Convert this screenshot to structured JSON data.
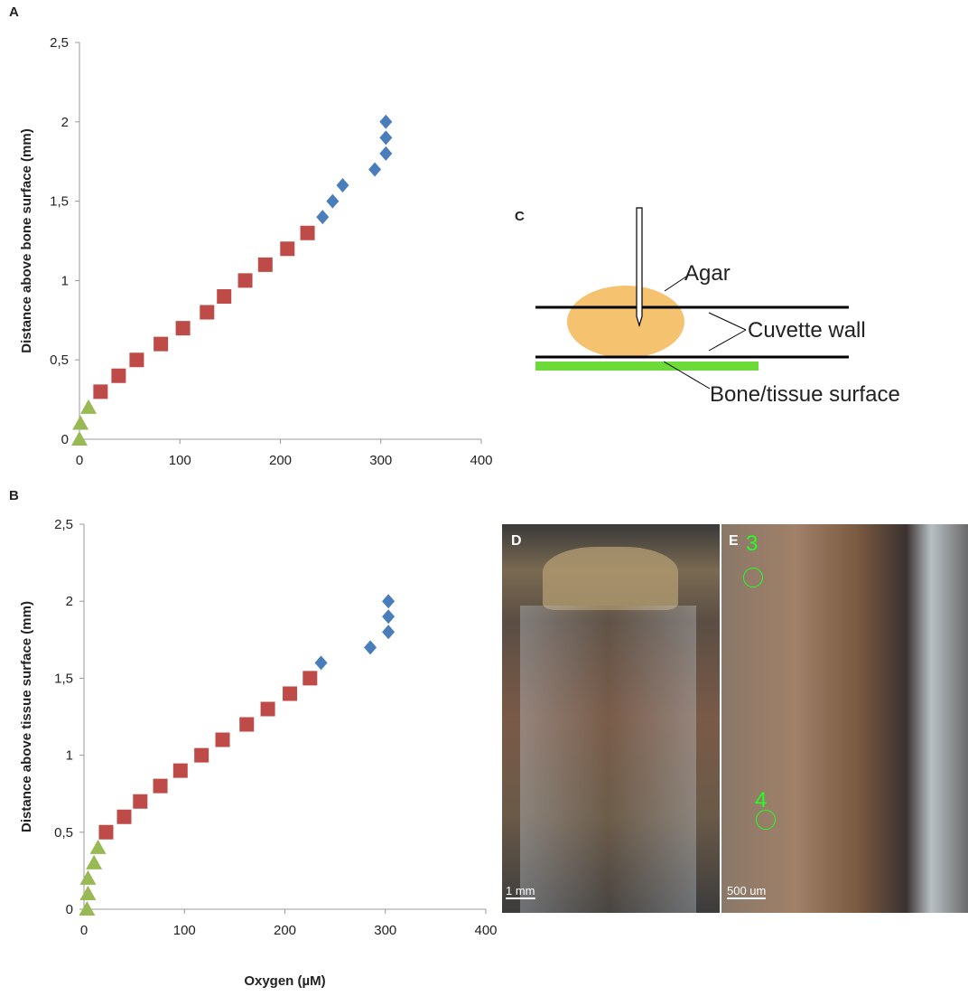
{
  "chart_data": [
    {
      "type": "scatter",
      "panel": "A",
      "ylabel": "Distance above bone surface (mm)",
      "xlim": [
        0,
        400
      ],
      "xticks": [
        0,
        100,
        200,
        300,
        400
      ],
      "ylim": [
        0,
        2.5
      ],
      "yticks": [
        0,
        {
          "value": 0.5,
          "label": "0,5"
        },
        1,
        {
          "value": 1.5,
          "label": "1,5"
        },
        2,
        {
          "value": 2.5,
          "label": "2,5"
        }
      ],
      "series": [
        {
          "color": "#4a7ebb",
          "marker": "diamond",
          "x": [
            305,
            305,
            305,
            294,
            262,
            252,
            242
          ],
          "values": [
            2.0,
            1.9,
            1.8,
            1.7,
            1.6,
            1.5,
            1.4
          ]
        },
        {
          "color": "#be4b48",
          "marker": "square",
          "x": [
            227,
            207,
            185,
            165,
            144,
            127,
            103,
            81,
            57,
            39,
            21
          ],
          "values": [
            1.3,
            1.2,
            1.1,
            1.0,
            0.9,
            0.8,
            0.7,
            0.6,
            0.5,
            0.4,
            0.3
          ]
        },
        {
          "color": "#98b954",
          "marker": "triangle",
          "x": [
            9,
            1,
            0
          ],
          "values": [
            0.2,
            0.1,
            0
          ]
        }
      ]
    },
    {
      "type": "scatter",
      "panel": "B",
      "ylabel": "Distance above tissue surface (mm)",
      "xlabel": "Oxygen (µM)",
      "xlim": [
        0,
        400
      ],
      "xticks": [
        0,
        100,
        200,
        300,
        400
      ],
      "ylim": [
        0,
        2.5
      ],
      "yticks": [
        0,
        {
          "value": 0.5,
          "label": "0,5"
        },
        1,
        {
          "value": 1.5,
          "label": "1,5"
        },
        2,
        {
          "value": 2.5,
          "label": "2,5"
        }
      ],
      "series": [
        {
          "color": "#4a7ebb",
          "marker": "diamond",
          "x": [
            303,
            303,
            303,
            285,
            236
          ],
          "values": [
            2.0,
            1.9,
            1.8,
            1.7,
            1.6
          ]
        },
        {
          "color": "#be4b48",
          "marker": "square",
          "x": [
            225,
            205,
            183,
            162,
            138,
            117,
            96,
            76,
            56,
            40,
            22
          ],
          "values": [
            1.5,
            1.4,
            1.3,
            1.2,
            1.1,
            1.0,
            0.9,
            0.8,
            0.7,
            0.6,
            0.5
          ]
        },
        {
          "color": "#98b954",
          "marker": "triangle",
          "x": [
            14,
            10,
            4,
            4,
            3
          ],
          "values": [
            0.4,
            0.3,
            0.2,
            0.1,
            0
          ]
        }
      ]
    }
  ],
  "diagram": {
    "panel": "C",
    "labels": [
      "Agar",
      "Cuvette wall",
      "Bone/tissue surface"
    ]
  },
  "photos": [
    {
      "panel": "D",
      "scale": "1 mm"
    },
    {
      "panel": "E",
      "scale": "500 um",
      "sites": [
        "3",
        "4"
      ]
    }
  ]
}
